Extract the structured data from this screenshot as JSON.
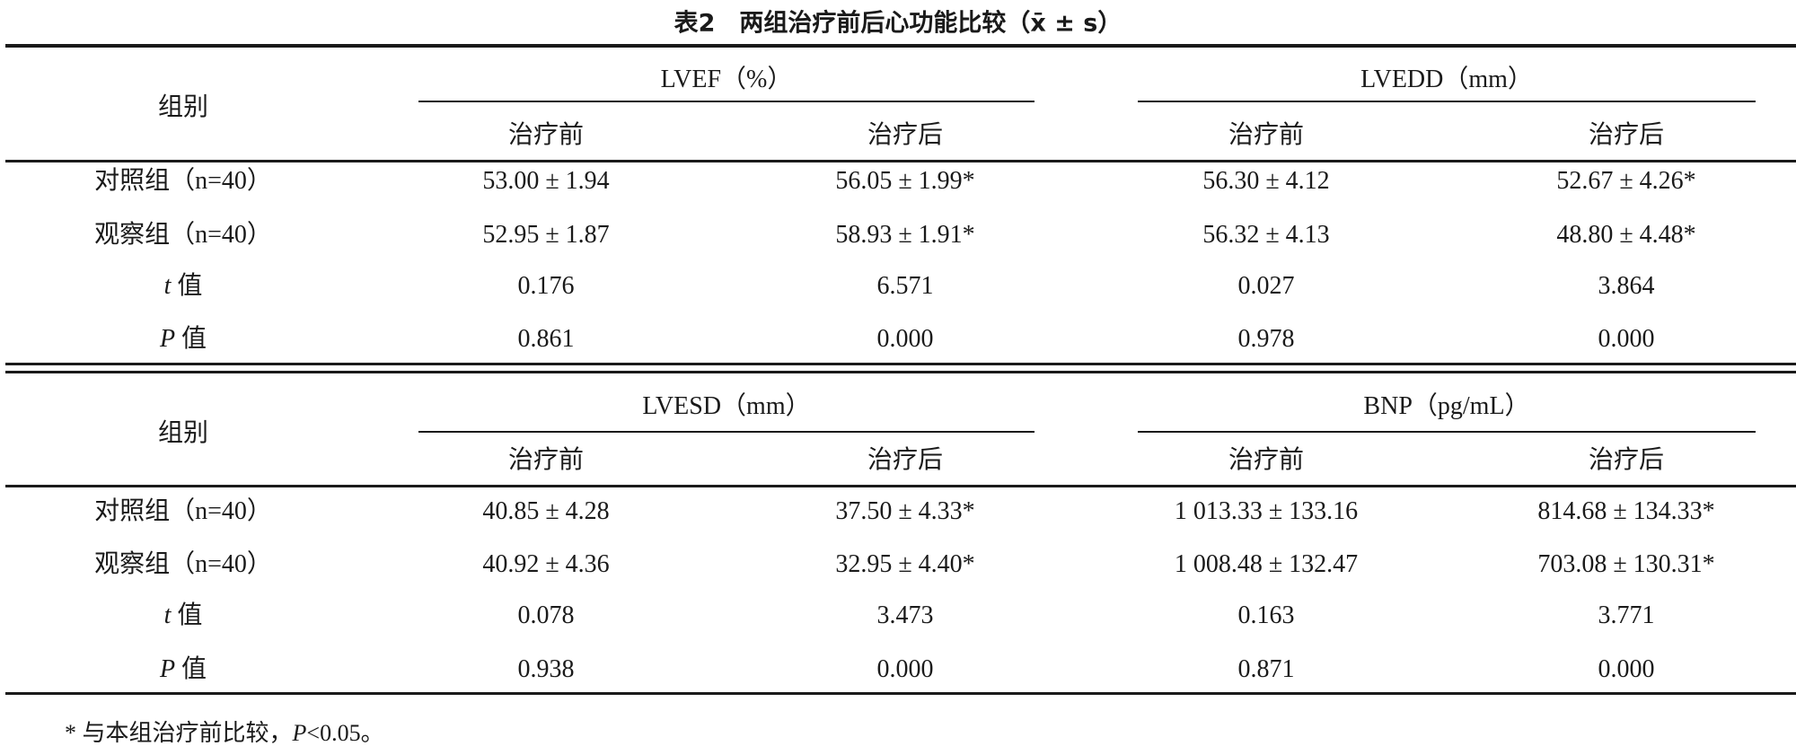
{
  "title": "表2　两组治疗前后心功能比较（x̄ ± s）",
  "group_header": "组别",
  "sub_headers": [
    "治疗前",
    "治疗后"
  ],
  "row_labels": [
    "对照组（n=40）",
    "观察组（n=40）",
    "t 值",
    "P 值"
  ],
  "blocks": [
    {
      "metrics": [
        "LVEF（%）",
        "LVEDD（mm）"
      ],
      "rows": [
        [
          "53.00 ± 1.94",
          "56.05 ± 1.99*",
          "56.30 ± 4.12",
          "52.67 ± 4.26*"
        ],
        [
          "52.95 ± 1.87",
          "58.93 ± 1.91*",
          "56.32 ± 4.13",
          "48.80 ± 4.48*"
        ],
        [
          "0.176",
          "6.571",
          "0.027",
          "3.864"
        ],
        [
          "0.861",
          "0.000",
          "0.978",
          "0.000"
        ]
      ]
    },
    {
      "metrics": [
        "LVESD（mm）",
        "BNP（pg/mL）"
      ],
      "rows": [
        [
          "40.85 ± 4.28",
          "37.50 ± 4.33*",
          "1 013.33 ± 133.16",
          "814.68 ± 134.33*"
        ],
        [
          "40.92 ± 4.36",
          "32.95 ± 4.40*",
          "1 008.48 ± 132.47",
          "703.08 ± 130.31*"
        ],
        [
          "0.078",
          "3.473",
          "0.163",
          "3.771"
        ],
        [
          "0.938",
          "0.000",
          "0.871",
          "0.000"
        ]
      ]
    }
  ],
  "footnote": "* 与本组治疗前比较，P<0.05。"
}
